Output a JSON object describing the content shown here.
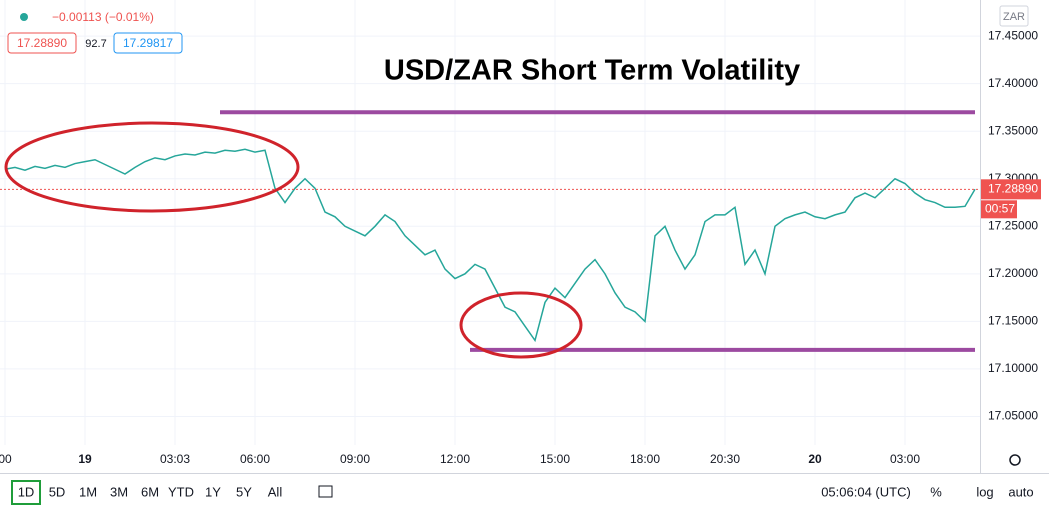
{
  "header": {
    "change": "−0.00113 (−0.01%)",
    "bid": "17.28890",
    "spread": "92.7",
    "ask": "17.29817",
    "currency": "ZAR"
  },
  "chart_data": {
    "type": "line",
    "title": "USD/ZAR Short Term Volatility",
    "categories": [
      "00",
      null,
      null,
      null,
      null,
      null,
      null,
      null,
      "19",
      null,
      null,
      null,
      null,
      null,
      null,
      null,
      null,
      "03:03",
      null,
      null,
      null,
      null,
      null,
      null,
      null,
      "06:00",
      null,
      null,
      null,
      null,
      null,
      null,
      null,
      null,
      null,
      "09:00",
      null,
      null,
      null,
      null,
      null,
      null,
      null,
      null,
      null,
      "12:00",
      null,
      null,
      null,
      null,
      null,
      null,
      null,
      null,
      null,
      "15:00",
      null,
      null,
      null,
      null,
      null,
      null,
      null,
      null,
      "18:00",
      null,
      null,
      null,
      null,
      null,
      null,
      null,
      "20:30",
      null,
      null,
      null,
      null,
      null,
      null,
      null,
      null,
      "20",
      null,
      null,
      null,
      null,
      null,
      null,
      null,
      null,
      "03:00",
      null,
      null,
      null,
      null,
      null,
      null,
      null
    ],
    "series": [
      {
        "name": "USD/ZAR",
        "color": "#26a69a",
        "values": [
          17.31,
          17.312,
          17.309,
          17.313,
          17.311,
          17.314,
          17.312,
          17.316,
          17.318,
          17.32,
          17.315,
          17.31,
          17.305,
          17.312,
          17.318,
          17.322,
          17.32,
          17.324,
          17.326,
          17.325,
          17.328,
          17.327,
          17.33,
          17.329,
          17.331,
          17.328,
          17.33,
          17.29,
          17.275,
          17.29,
          17.3,
          17.29,
          17.265,
          17.26,
          17.25,
          17.245,
          17.24,
          17.25,
          17.262,
          17.255,
          17.24,
          17.23,
          17.22,
          17.225,
          17.205,
          17.195,
          17.2,
          17.21,
          17.205,
          17.185,
          17.165,
          17.16,
          17.145,
          17.13,
          17.17,
          17.185,
          17.175,
          17.19,
          17.205,
          17.215,
          17.2,
          17.18,
          17.165,
          17.16,
          17.15,
          17.24,
          17.25,
          17.225,
          17.205,
          17.22,
          17.255,
          17.262,
          17.262,
          17.27,
          17.21,
          17.225,
          17.2,
          17.25,
          17.258,
          17.262,
          17.265,
          17.26,
          17.258,
          17.262,
          17.265,
          17.28,
          17.285,
          17.28,
          17.29,
          17.3,
          17.295,
          17.285,
          17.278,
          17.275,
          17.27,
          17.27,
          17.271,
          17.289
        ]
      }
    ],
    "ylim": [
      17.02,
      17.488
    ],
    "yticks": [
      {
        "value": 17.05,
        "label": "17.05000"
      },
      {
        "value": 17.1,
        "label": "17.10000"
      },
      {
        "value": 17.15,
        "label": "17.15000"
      },
      {
        "value": 17.2,
        "label": "17.20000"
      },
      {
        "value": 17.25,
        "label": "17.25000"
      },
      {
        "value": 17.3,
        "label": "17.30000"
      },
      {
        "value": 17.35,
        "label": "17.35000"
      },
      {
        "value": 17.4,
        "label": "17.40000"
      },
      {
        "value": 17.45,
        "label": "17.45000"
      }
    ],
    "grid": true,
    "levels": [
      {
        "value": 17.37,
        "color": "#9c4aa0"
      },
      {
        "value": 17.12,
        "color": "#9c4aa0"
      }
    ],
    "current_price": {
      "value": 17.2889,
      "label": "17.28890",
      "countdown": "00:57",
      "color": "#ef5350"
    }
  },
  "toolbar": {
    "ranges": [
      "1D",
      "5D",
      "1M",
      "3M",
      "6M",
      "YTD",
      "1Y",
      "5Y",
      "All"
    ],
    "clock": "05:06:04 (UTC)",
    "percent": "%",
    "log": "log",
    "auto": "auto"
  }
}
